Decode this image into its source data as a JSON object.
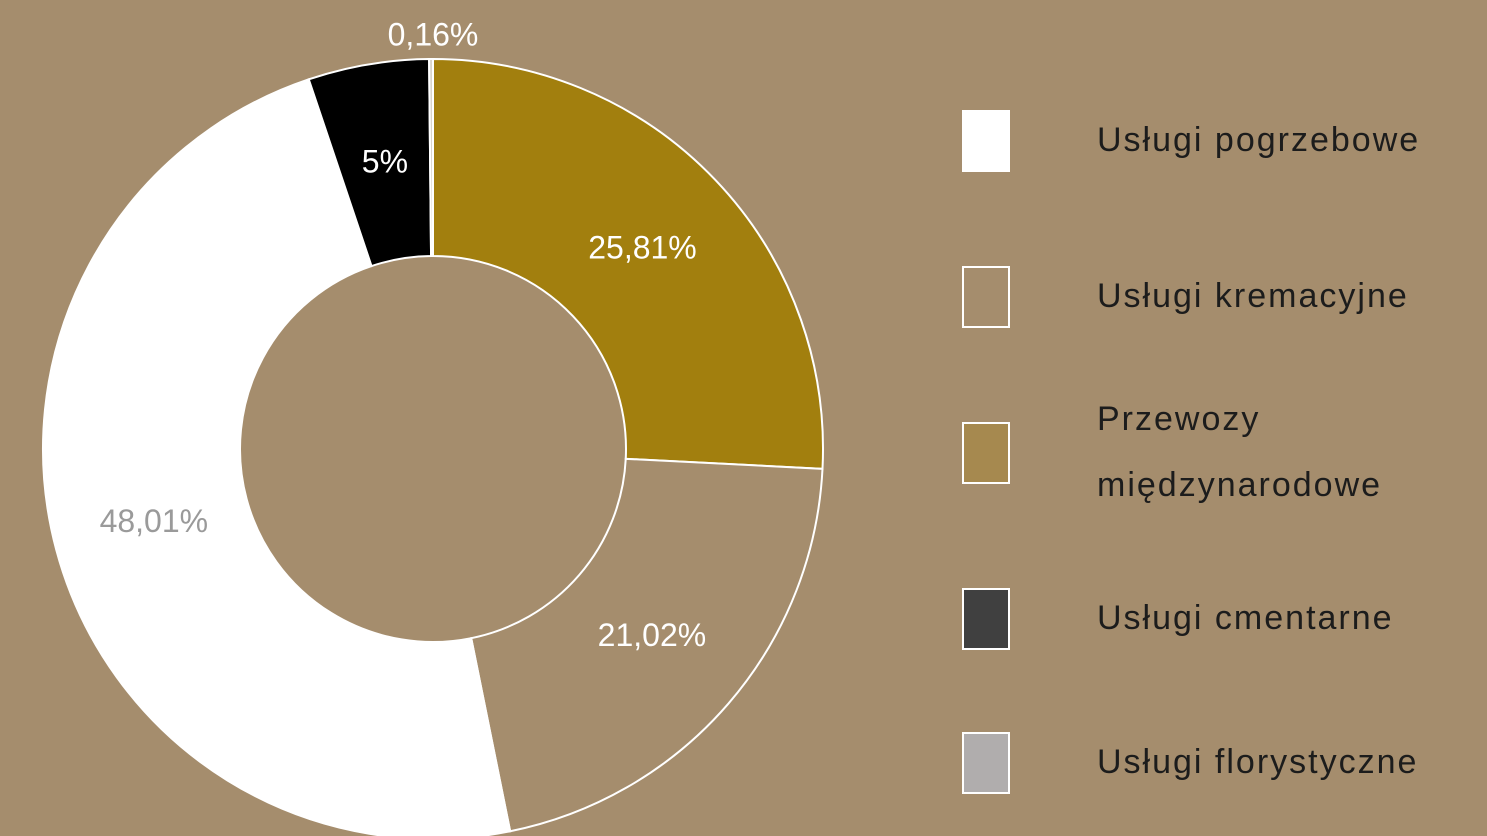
{
  "chart_data": {
    "type": "donut",
    "categories": [
      "Usługi pogrzebowe",
      "Usługi kremacyjne",
      "Przewozy międzynarodowe",
      "Usługi cmentarne",
      "Usługi florystyczne"
    ],
    "values": [
      48.01,
      21.02,
      25.81,
      5,
      0.16
    ],
    "value_labels": [
      "48,01%",
      "21,02%",
      "25,81%",
      "5%",
      "0,16%"
    ],
    "colors": [
      "#ffffff",
      "#a58d6d",
      "#a27f0e",
      "#000000",
      "#d9d4cc"
    ],
    "legend_colors": [
      "#ffffff",
      "#a58d6d",
      "#a6894f",
      "#404040",
      "#b0adad"
    ],
    "label_colors": [
      "#9a9a9a",
      "#ffffff",
      "#ffffff",
      "#ffffff",
      "#ffffff"
    ],
    "legend": "right"
  }
}
